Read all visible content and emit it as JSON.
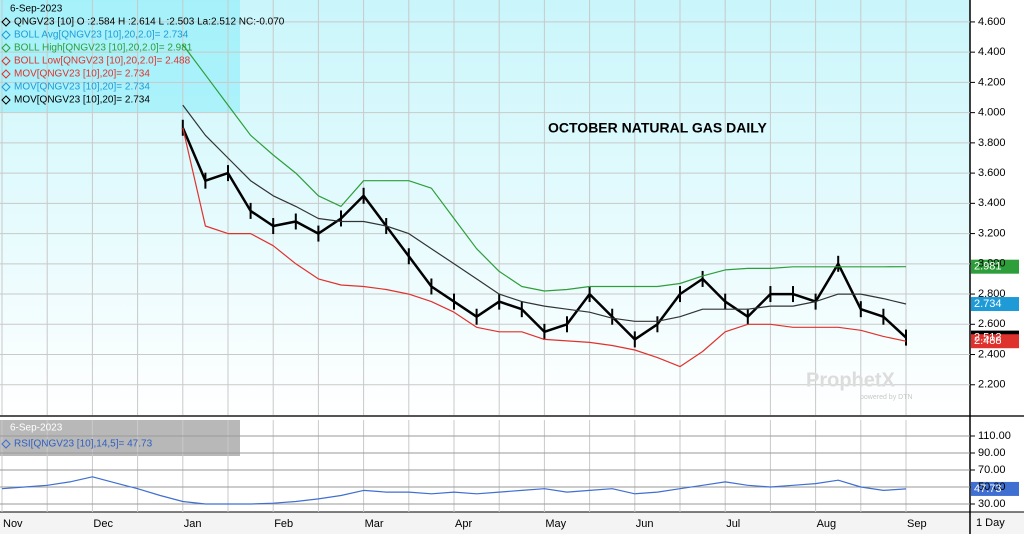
{
  "chart_data": [
    {
      "type": "line",
      "title": "OCTOBER NATURAL GAS DAILY",
      "date": "6-Sep-2023",
      "watermark": "ProphetX",
      "watermark_sub": "powered by DTN",
      "categories": [
        "Nov",
        null,
        null,
        null,
        "Dec",
        null,
        null,
        null,
        "Jan",
        null,
        null,
        null,
        "Feb",
        null,
        null,
        null,
        "Mar",
        null,
        null,
        null,
        "Apr",
        null,
        null,
        null,
        "May",
        null,
        null,
        null,
        "Jun",
        null,
        null,
        null,
        "Jul",
        null,
        null,
        null,
        "Aug",
        null,
        null,
        null,
        "Sep"
      ],
      "ylim": [
        2.0,
        4.745
      ],
      "yticks": [
        {
          "value": 2.2,
          "label": "2.200"
        },
        {
          "value": 2.4,
          "label": "2.400"
        },
        {
          "value": 2.6,
          "label": "2.600"
        },
        {
          "value": 2.8,
          "label": "2.800"
        },
        {
          "value": 3.0,
          "label": "3.000"
        },
        {
          "value": 3.2,
          "label": "3.200"
        },
        {
          "value": 3.4,
          "label": "3.400"
        },
        {
          "value": 3.6,
          "label": "3.600"
        },
        {
          "value": 3.8,
          "label": "3.800"
        },
        {
          "value": 4.0,
          "label": "4.000"
        },
        {
          "value": 4.2,
          "label": "4.200"
        },
        {
          "value": 4.4,
          "label": "4.400"
        },
        {
          "value": 4.6,
          "label": "4.600"
        }
      ],
      "grid": true,
      "series": [
        {
          "name": "QNGV23 [10] O :2.584 H :2.614 L :2.503 La:2.512 NC:-0.070",
          "color": "#000000",
          "values": [
            null,
            null,
            null,
            null,
            null,
            null,
            null,
            null,
            3.9,
            3.55,
            3.6,
            3.35,
            3.25,
            3.28,
            3.2,
            3.3,
            3.45,
            3.25,
            3.05,
            2.85,
            2.75,
            2.65,
            2.75,
            2.7,
            2.55,
            2.6,
            2.8,
            2.65,
            2.5,
            2.6,
            2.8,
            2.9,
            2.75,
            2.65,
            2.8,
            2.8,
            2.75,
            3.0,
            2.7,
            2.65,
            2.512
          ]
        },
        {
          "name": "BOLL Avg[QNGV23 [10],20,2.0]= 2.734",
          "color": "#333333",
          "values": [
            null,
            null,
            null,
            null,
            null,
            null,
            null,
            null,
            4.05,
            3.85,
            3.7,
            3.55,
            3.45,
            3.38,
            3.3,
            3.28,
            3.28,
            3.25,
            3.2,
            3.1,
            3.0,
            2.9,
            2.8,
            2.75,
            2.72,
            2.7,
            2.68,
            2.64,
            2.62,
            2.62,
            2.65,
            2.7,
            2.7,
            2.7,
            2.72,
            2.72,
            2.75,
            2.8,
            2.8,
            2.77,
            2.734
          ]
        },
        {
          "name": "BOLL High[QNGV23 [10],20,2.0]= 2.981",
          "color": "#2e9e3a",
          "values": [
            null,
            null,
            null,
            null,
            null,
            null,
            null,
            null,
            4.45,
            4.25,
            4.05,
            3.85,
            3.72,
            3.6,
            3.45,
            3.38,
            3.55,
            3.55,
            3.55,
            3.5,
            3.3,
            3.1,
            2.95,
            2.85,
            2.82,
            2.83,
            2.85,
            2.85,
            2.85,
            2.85,
            2.87,
            2.92,
            2.96,
            2.97,
            2.97,
            2.98,
            2.98,
            2.98,
            2.98,
            2.98,
            2.981
          ]
        },
        {
          "name": "BOLL Low[QNGV23 [10],20,2.0]= 2.488",
          "color": "#e0322d",
          "values": [
            null,
            null,
            null,
            null,
            null,
            null,
            null,
            null,
            3.9,
            3.25,
            3.2,
            3.2,
            3.12,
            3.0,
            2.9,
            2.86,
            2.85,
            2.83,
            2.8,
            2.75,
            2.68,
            2.58,
            2.55,
            2.55,
            2.5,
            2.49,
            2.48,
            2.46,
            2.43,
            2.38,
            2.32,
            2.42,
            2.55,
            2.6,
            2.6,
            2.58,
            2.58,
            2.58,
            2.56,
            2.52,
            2.488
          ]
        }
      ],
      "annotations": [
        {
          "text": "MOV[QNGV23 [10],20]= 2.734",
          "color": "#e0322d"
        },
        {
          "text": "MOV[QNGV23 [10],20]= 2.734",
          "color": "#1e9bd7"
        },
        {
          "text": "MOV[QNGV23 [10],20]= 2.734",
          "color": "#000000"
        }
      ]
    },
    {
      "type": "line",
      "date": "6-Sep-2023",
      "footer": "1 Day",
      "ylim": [
        20.6,
        128.8
      ],
      "yticks": [
        {
          "value": 30,
          "label": "30.00"
        },
        {
          "value": 50,
          "label": "50.00"
        },
        {
          "value": 70,
          "label": "70.00"
        },
        {
          "value": 90,
          "label": "90.00"
        },
        {
          "value": 110,
          "label": "110.00"
        }
      ],
      "series": [
        {
          "name": "RSI[QNGV23 [10],14,5]= 47.73",
          "color": "#3f6fd1",
          "values": [
            48,
            50,
            52,
            56,
            62,
            55,
            48,
            40,
            33,
            30,
            30,
            30,
            31,
            33,
            36,
            40,
            46,
            44,
            44,
            42,
            44,
            42,
            44,
            46,
            48,
            44,
            46,
            48,
            42,
            44,
            48,
            52,
            56,
            52,
            50,
            52,
            54,
            58,
            50,
            46,
            47.73
          ]
        }
      ]
    }
  ]
}
